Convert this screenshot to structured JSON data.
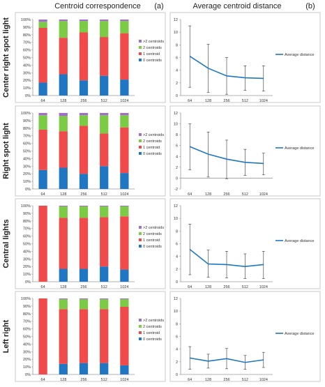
{
  "header": {
    "left_title": "Centroid correspondence",
    "left_tag": "(a)",
    "right_title": "Average centroid distance",
    "right_tag": "(b)"
  },
  "colors": {
    "zero": "#1f77c4",
    "one": "#f04a4a",
    "two": "#7ccb44",
    "more": "#a070c8",
    "line": "#1f77c4",
    "frame": "#c8c8c8"
  },
  "chart_data": [
    {
      "type": "bar",
      "stacked": true,
      "row_label": "Center right spot light",
      "categories": [
        "64",
        "128",
        "256",
        "512",
        "1024"
      ],
      "ylim": [
        0,
        100
      ],
      "y_ticks": [
        "0%",
        "10%",
        "20%",
        "30%",
        "40%",
        "50%",
        "60%",
        "70%",
        "80%",
        "90%",
        "100%"
      ],
      "series": [
        {
          "name": "0 centroids",
          "values": [
            17,
            28,
            20,
            26,
            21
          ]
        },
        {
          "name": "1 centroid",
          "values": [
            72,
            48,
            63,
            51,
            61
          ]
        },
        {
          "name": "2 centroids",
          "values": [
            8,
            22,
            15,
            21,
            16
          ]
        },
        {
          "name": ">2 centroids",
          "values": [
            3,
            2,
            2,
            2,
            2
          ]
        }
      ],
      "legend": "right"
    },
    {
      "type": "line",
      "row_label": "Center right spot light",
      "categories": [
        "64",
        "128",
        "256",
        "512",
        "1024"
      ],
      "ylim": [
        0,
        12
      ],
      "y_ticks": [
        "0",
        "2",
        "4",
        "6",
        "8",
        "10",
        "12"
      ],
      "series": [
        {
          "name": "Average distance",
          "values": [
            6.2,
            4.3,
            3.1,
            2.8,
            2.7
          ],
          "error_low": [
            1.3,
            0.5,
            0.2,
            0.8,
            0.7
          ],
          "error_high": [
            11.0,
            8.1,
            6.0,
            4.7,
            4.7
          ]
        }
      ],
      "legend": "right"
    },
    {
      "type": "bar",
      "stacked": true,
      "row_label": "Right spot light",
      "categories": [
        "64",
        "128",
        "256",
        "512",
        "1024"
      ],
      "ylim": [
        0,
        100
      ],
      "y_ticks": [
        "0%",
        "10%",
        "20%",
        "30%",
        "40%",
        "50%",
        "60%",
        "70%",
        "80%",
        "90%",
        "100%"
      ],
      "series": [
        {
          "name": "0 centroids",
          "values": [
            25,
            28,
            20,
            30,
            21
          ]
        },
        {
          "name": "1 centroid",
          "values": [
            53,
            48,
            63,
            43,
            60
          ]
        },
        {
          "name": "2 centroids",
          "values": [
            19,
            20,
            14,
            24,
            16
          ]
        },
        {
          "name": ">2 centroids",
          "values": [
            3,
            4,
            3,
            3,
            3
          ]
        }
      ],
      "legend": "right"
    },
    {
      "type": "line",
      "row_label": "Right spot light",
      "categories": [
        "64",
        "128",
        "256",
        "512",
        "1024"
      ],
      "ylim": [
        -2,
        12
      ],
      "y_ticks": [
        "-2",
        "0",
        "2",
        "4",
        "6",
        "8",
        "10",
        "12"
      ],
      "series": [
        {
          "name": "Average distance",
          "values": [
            5.8,
            4.4,
            3.5,
            2.9,
            2.7
          ],
          "error_low": [
            1.5,
            0.2,
            -0.1,
            0.5,
            0.6
          ],
          "error_high": [
            10.0,
            8.5,
            7.0,
            5.3,
            4.6
          ]
        }
      ],
      "legend": "right"
    },
    {
      "type": "bar",
      "stacked": true,
      "row_label": "Central lights",
      "categories": [
        "64",
        "128",
        "256",
        "512",
        "1024"
      ],
      "ylim": [
        0,
        100
      ],
      "y_ticks": [
        "0%",
        "10%",
        "20%",
        "30%",
        "40%",
        "50%",
        "60%",
        "70%",
        "80%",
        "90%",
        "100%"
      ],
      "series": [
        {
          "name": "0 centroids",
          "values": [
            0,
            17,
            17,
            20,
            16
          ]
        },
        {
          "name": "1 centroid",
          "values": [
            100,
            67,
            67,
            65,
            70
          ]
        },
        {
          "name": "2 centroids",
          "values": [
            0,
            15,
            15,
            14,
            13
          ]
        },
        {
          "name": ">2 centroids",
          "values": [
            0,
            1,
            1,
            1,
            1
          ]
        }
      ],
      "legend": "right"
    },
    {
      "type": "line",
      "row_label": "Central lights",
      "categories": [
        "64",
        "128",
        "256",
        "512",
        "1024"
      ],
      "ylim": [
        0,
        12
      ],
      "y_ticks": [
        "0",
        "2",
        "4",
        "6",
        "8",
        "10",
        "12"
      ],
      "series": [
        {
          "name": "Average distance",
          "values": [
            5.1,
            2.8,
            2.7,
            2.4,
            2.7
          ],
          "error_low": [
            1.1,
            0.7,
            0.6,
            0.5,
            0.5
          ],
          "error_high": [
            9.1,
            5.0,
            4.8,
            4.4,
            4.8
          ]
        }
      ],
      "legend": "right"
    },
    {
      "type": "bar",
      "stacked": true,
      "row_label": "Left right",
      "categories": [
        "64",
        "128",
        "256",
        "512",
        "1024"
      ],
      "ylim": [
        0,
        100
      ],
      "y_ticks": [
        "0%",
        "10%",
        "20%",
        "30%",
        "40%",
        "50%",
        "60%",
        "70%",
        "80%",
        "90%",
        "100%"
      ],
      "series": [
        {
          "name": "0 centroids",
          "values": [
            0,
            14,
            15,
            15,
            12
          ]
        },
        {
          "name": "1 centroid",
          "values": [
            100,
            72,
            71,
            71,
            77
          ]
        },
        {
          "name": "2 centroids",
          "values": [
            0,
            13,
            13,
            13,
            10
          ]
        },
        {
          "name": ">2 centroids",
          "values": [
            0,
            1,
            1,
            1,
            1
          ]
        }
      ],
      "legend": "right"
    },
    {
      "type": "line",
      "row_label": "Left right",
      "categories": [
        "64",
        "128",
        "256",
        "512",
        "1024"
      ],
      "ylim": [
        0,
        12
      ],
      "y_ticks": [
        "0",
        "2",
        "4",
        "6",
        "8",
        "10",
        "12"
      ],
      "series": [
        {
          "name": "Average distance",
          "values": [
            2.6,
            2.1,
            2.5,
            1.9,
            2.3
          ],
          "error_low": [
            0.8,
            1.0,
            0.9,
            0.8,
            1.1
          ],
          "error_high": [
            4.4,
            3.2,
            4.1,
            3.0,
            3.5
          ]
        }
      ],
      "legend": "right"
    }
  ]
}
